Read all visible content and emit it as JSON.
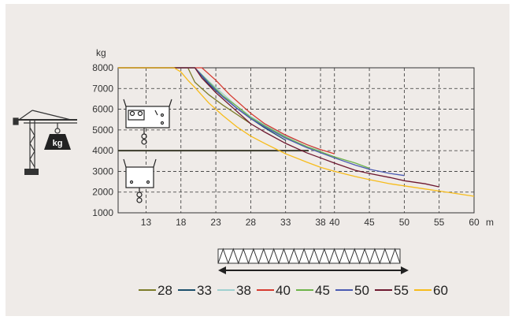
{
  "chart_data": {
    "type": "line",
    "ylabel": "kg",
    "xunit": "m",
    "xlim": [
      9,
      60
    ],
    "ylim": [
      1000,
      8000
    ],
    "x_ticks": [
      13,
      18,
      23,
      28,
      33,
      38,
      40,
      45,
      50,
      55,
      60
    ],
    "y_ticks": [
      1000,
      2000,
      3000,
      4000,
      5000,
      6000,
      7000,
      8000
    ],
    "grid": "dashed",
    "legend_position": "bottom",
    "reference_line": {
      "y": 4000
    },
    "series": [
      {
        "name": "28",
        "color": "#7d7c2a",
        "points": [
          [
            9,
            8000
          ],
          [
            19,
            8000
          ],
          [
            20,
            7300
          ],
          [
            22,
            6700
          ],
          [
            24,
            6200
          ],
          [
            26,
            5750
          ],
          [
            28,
            5300
          ]
        ]
      },
      {
        "name": "33",
        "color": "#1b4f6b",
        "points": [
          [
            9,
            8000
          ],
          [
            20,
            8000
          ],
          [
            22,
            7200
          ],
          [
            24,
            6600
          ],
          [
            26,
            6050
          ],
          [
            28,
            5550
          ],
          [
            30,
            5100
          ],
          [
            33,
            4500
          ]
        ]
      },
      {
        "name": "38",
        "color": "#9fd0cf",
        "points": [
          [
            9,
            8000
          ],
          [
            20,
            8000
          ],
          [
            22,
            7350
          ],
          [
            24,
            6750
          ],
          [
            26,
            6150
          ],
          [
            28,
            5650
          ],
          [
            30,
            5250
          ],
          [
            33,
            4700
          ],
          [
            36,
            4300
          ],
          [
            38,
            4000
          ]
        ]
      },
      {
        "name": "40",
        "color": "#d63a30",
        "points": [
          [
            9,
            8000
          ],
          [
            21,
            8000
          ],
          [
            23,
            7400
          ],
          [
            25,
            6700
          ],
          [
            28,
            5800
          ],
          [
            30,
            5300
          ],
          [
            33,
            4750
          ],
          [
            36,
            4300
          ],
          [
            38,
            4050
          ],
          [
            40,
            3850
          ]
        ]
      },
      {
        "name": "45",
        "color": "#6db34a",
        "points": [
          [
            9,
            8000
          ],
          [
            20,
            8000
          ],
          [
            22,
            7300
          ],
          [
            24,
            6650
          ],
          [
            26,
            6150
          ],
          [
            28,
            5600
          ],
          [
            30,
            5200
          ],
          [
            33,
            4650
          ],
          [
            36,
            4200
          ],
          [
            38,
            3950
          ],
          [
            40,
            3700
          ],
          [
            43,
            3400
          ],
          [
            45,
            3150
          ]
        ]
      },
      {
        "name": "50",
        "color": "#4a5ab2",
        "points": [
          [
            9,
            8000
          ],
          [
            20,
            8000
          ],
          [
            22,
            7250
          ],
          [
            24,
            6600
          ],
          [
            26,
            6050
          ],
          [
            28,
            5550
          ],
          [
            30,
            5150
          ],
          [
            33,
            4600
          ],
          [
            36,
            4150
          ],
          [
            38,
            3900
          ],
          [
            40,
            3650
          ],
          [
            43,
            3300
          ],
          [
            45,
            3100
          ],
          [
            48,
            2900
          ],
          [
            50,
            2800
          ]
        ]
      },
      {
        "name": "55",
        "color": "#6e1830",
        "points": [
          [
            9,
            8000
          ],
          [
            20,
            8000
          ],
          [
            21,
            7500
          ],
          [
            23,
            6800
          ],
          [
            25,
            6200
          ],
          [
            28,
            5300
          ],
          [
            30,
            4900
          ],
          [
            33,
            4350
          ],
          [
            36,
            3900
          ],
          [
            38,
            3650
          ],
          [
            40,
            3400
          ],
          [
            43,
            3050
          ],
          [
            45,
            2900
          ],
          [
            48,
            2700
          ],
          [
            50,
            2550
          ],
          [
            53,
            2400
          ],
          [
            55,
            2250
          ]
        ]
      },
      {
        "name": "60",
        "color": "#f7bc1b",
        "points": [
          [
            9,
            8000
          ],
          [
            17,
            8000
          ],
          [
            18,
            7800
          ],
          [
            19,
            7400
          ],
          [
            20,
            7050
          ],
          [
            22,
            6300
          ],
          [
            24,
            5700
          ],
          [
            26,
            5150
          ],
          [
            28,
            4700
          ],
          [
            30,
            4350
          ],
          [
            33,
            3850
          ],
          [
            36,
            3450
          ],
          [
            38,
            3200
          ],
          [
            40,
            3000
          ],
          [
            43,
            2750
          ],
          [
            45,
            2600
          ],
          [
            48,
            2400
          ],
          [
            50,
            2300
          ],
          [
            53,
            2150
          ],
          [
            55,
            2050
          ],
          [
            57,
            1950
          ],
          [
            60,
            1800
          ]
        ]
      }
    ]
  },
  "colors": {
    "panel": "#efebe8",
    "grid": "#333333",
    "text": "#333333"
  },
  "icons": [
    "tower-crane-icon",
    "kg-weight-icon",
    "trolley-hook-double-icon",
    "trolley-hook-single-icon",
    "jib-section-icon",
    "span-arrow-icon"
  ]
}
